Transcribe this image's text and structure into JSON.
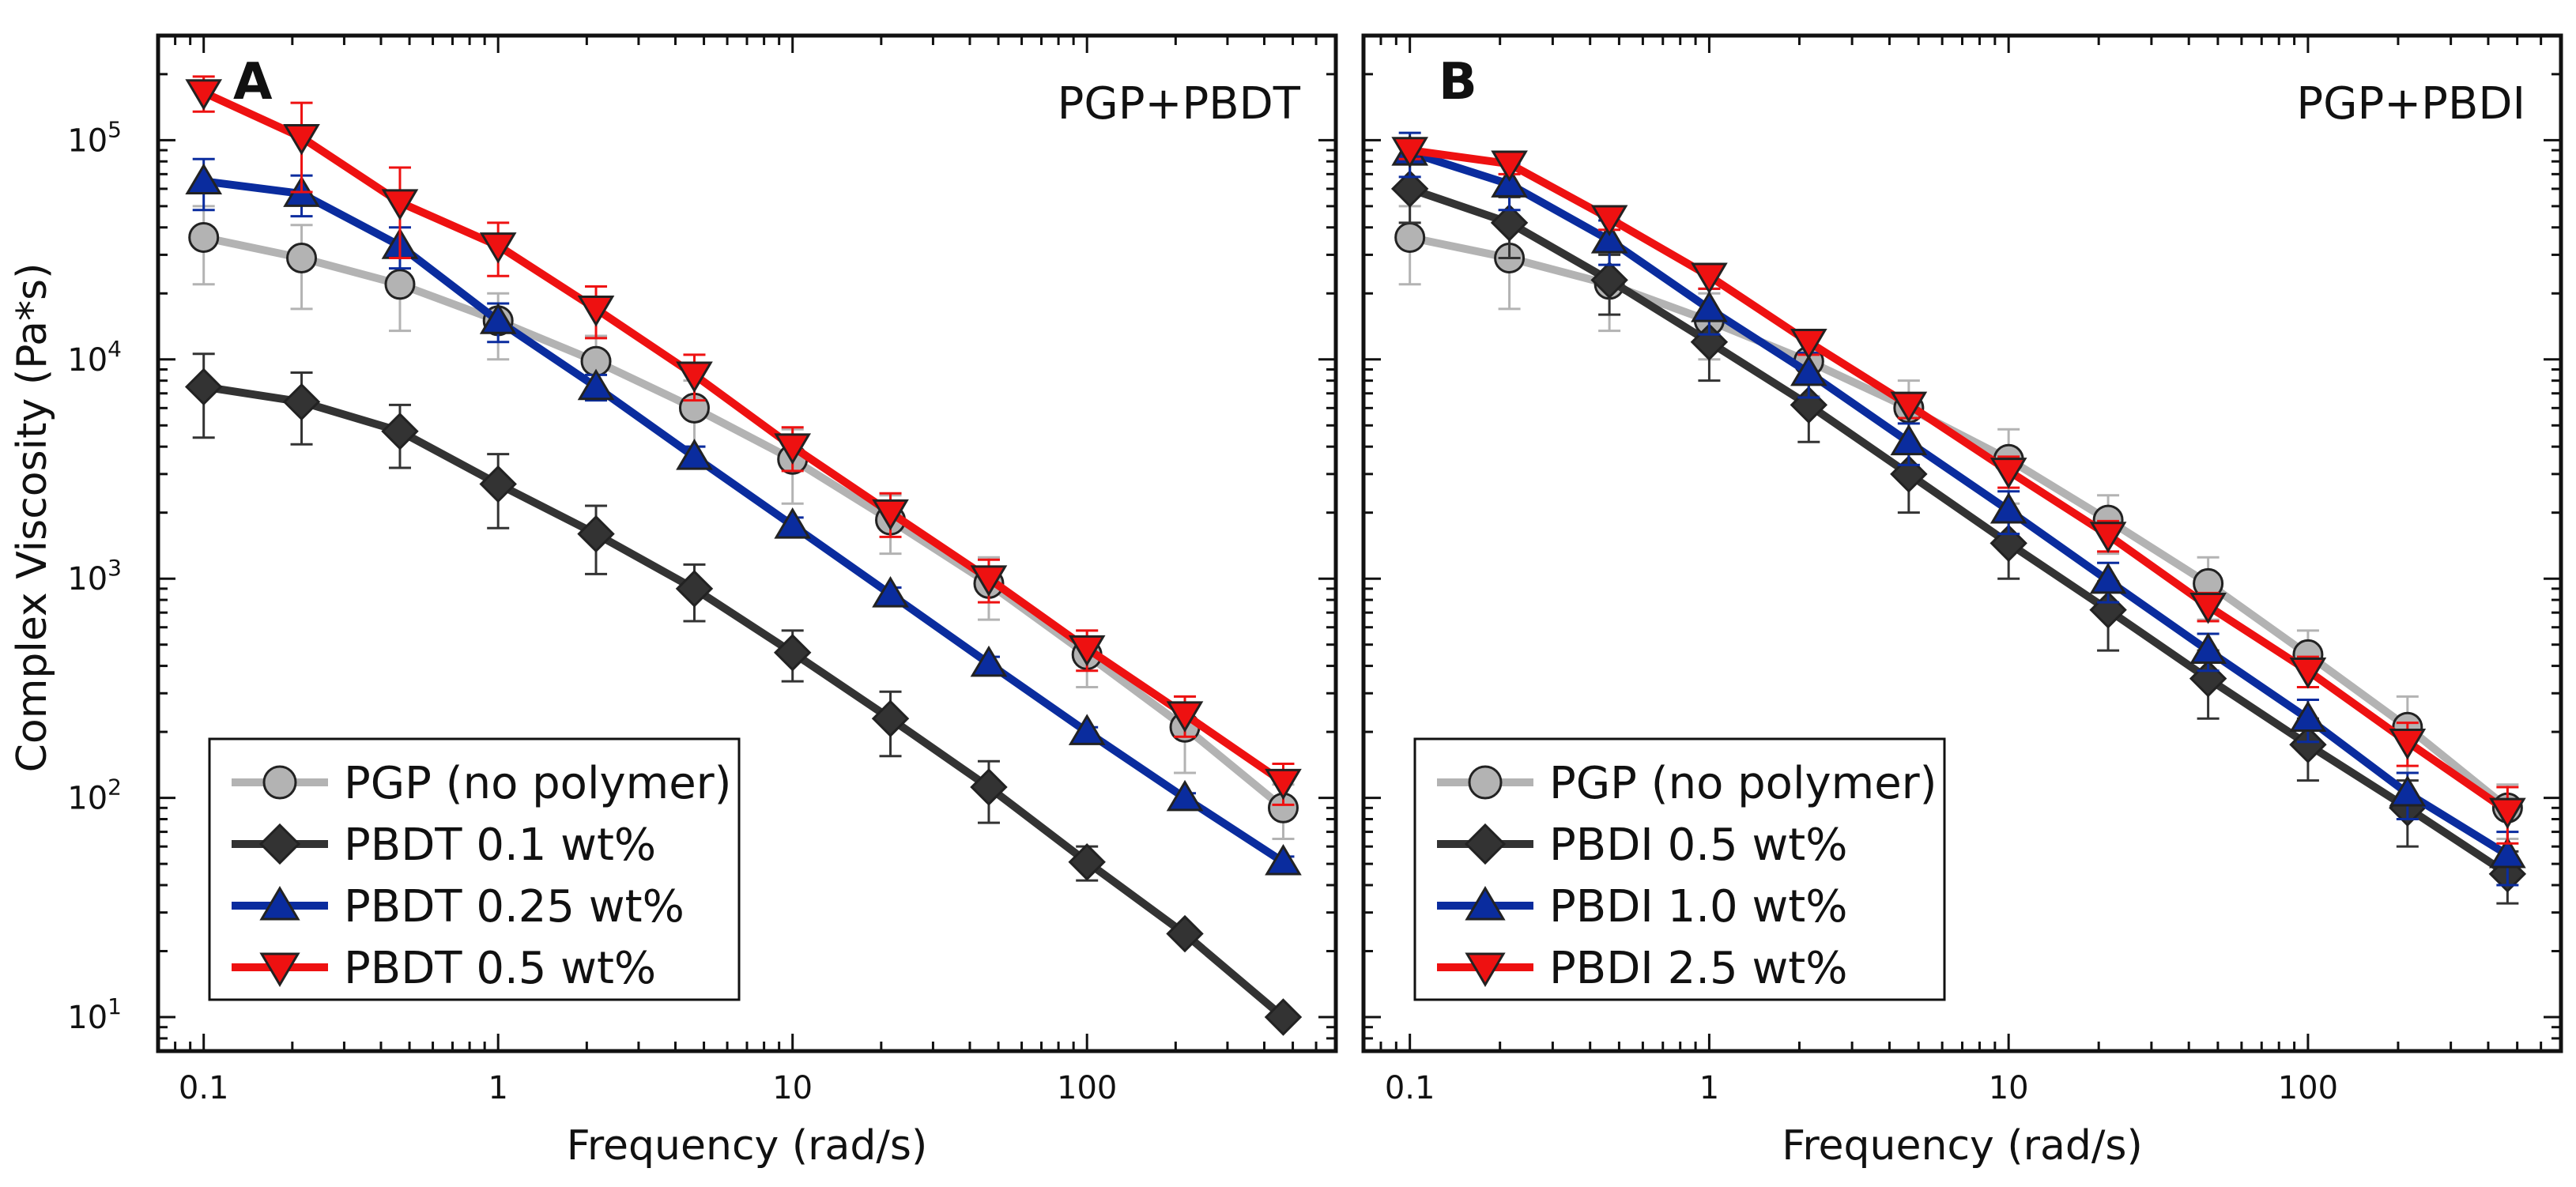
{
  "chart_data": [
    {
      "type": "line",
      "panel_label": "A",
      "title": "PGP+PBDT",
      "xlabel": "Frequency (rad/s)",
      "ylabel": "Complex Viscosity (Pa*s)",
      "xscale": "log",
      "yscale": "log",
      "xlim": [
        0.07,
        700
      ],
      "ylim": [
        7,
        300000
      ],
      "x_ticks": [
        0.1,
        1,
        10,
        100
      ],
      "x_tick_labels": [
        "0.1",
        "1",
        "10",
        "100"
      ],
      "y_ticks": [
        10,
        100,
        1000,
        10000,
        100000
      ],
      "y_tick_labels": [
        "10",
        "10",
        "10",
        "10",
        "10"
      ],
      "y_tick_exponents": [
        "1",
        "2",
        "3",
        "4",
        "5"
      ],
      "legend_position": "bottom-left",
      "x": [
        0.1,
        0.215,
        0.464,
        1.0,
        2.15,
        4.64,
        10.0,
        21.5,
        46.4,
        100,
        215,
        464
      ],
      "series": [
        {
          "name": "PGP (no polymer)",
          "color": "#b3b3b3",
          "marker": "circle",
          "values": [
            36000,
            29000,
            22000,
            15000,
            9800,
            6000,
            3500,
            1850,
            950,
            450,
            210,
            90
          ],
          "errors": [
            14000,
            12000,
            8500,
            5000,
            3000,
            2000,
            1300,
            550,
            300,
            130,
            80,
            25
          ]
        },
        {
          "name": "PBDT 0.1 wt%",
          "color": "#333333",
          "marker": "diamond",
          "values": [
            7500,
            6400,
            4700,
            2700,
            1600,
            900,
            460,
            230,
            112,
            51,
            24,
            10
          ],
          "errors": [
            3100,
            2300,
            1500,
            1000,
            550,
            260,
            120,
            75,
            35,
            9,
            0,
            0
          ]
        },
        {
          "name": "PBDT 0.25 wt%",
          "color": "#0a2c9e",
          "marker": "triangle-up",
          "values": [
            65000,
            57000,
            33000,
            15000,
            7500,
            3600,
            1750,
            850,
            410,
            200,
            100,
            51
          ],
          "errors": [
            17000,
            12000,
            7000,
            3000,
            1000,
            400,
            150,
            60,
            30,
            10,
            5,
            3
          ]
        },
        {
          "name": "PBDT 0.5 wt%",
          "color": "#ee1111",
          "marker": "triangle-down",
          "values": [
            165000,
            103000,
            52000,
            33000,
            17000,
            8500,
            4000,
            2000,
            1000,
            480,
            240,
            118
          ],
          "errors": [
            30000,
            45000,
            23000,
            9000,
            4500,
            2000,
            900,
            450,
            220,
            100,
            50,
            25
          ]
        }
      ]
    },
    {
      "type": "line",
      "panel_label": "B",
      "title": "PGP+PBDI",
      "xlabel": "Frequency (rad/s)",
      "ylabel": "",
      "xscale": "log",
      "yscale": "log",
      "xlim": [
        0.07,
        700
      ],
      "ylim": [
        7,
        300000
      ],
      "x_ticks": [
        0.1,
        1,
        10,
        100
      ],
      "x_tick_labels": [
        "0.1",
        "1",
        "10",
        "100"
      ],
      "legend_position": "bottom-left",
      "x": [
        0.1,
        0.215,
        0.464,
        1.0,
        2.15,
        4.64,
        10.0,
        21.5,
        46.4,
        100,
        215,
        464
      ],
      "series": [
        {
          "name": "PGP (no polymer)",
          "color": "#b3b3b3",
          "marker": "circle",
          "values": [
            36000,
            29000,
            22000,
            15000,
            9800,
            6000,
            3500,
            1850,
            950,
            450,
            210,
            90
          ],
          "errors": [
            14000,
            12000,
            8500,
            5000,
            3000,
            2000,
            1300,
            550,
            300,
            130,
            80,
            25
          ]
        },
        {
          "name": "PBDI 0.5 wt%",
          "color": "#333333",
          "marker": "diamond",
          "values": [
            60000,
            42000,
            23000,
            12000,
            6200,
            3000,
            1450,
            720,
            350,
            175,
            90,
            45
          ],
          "errors": [
            18000,
            13000,
            7000,
            4000,
            2000,
            1000,
            450,
            250,
            120,
            55,
            30,
            12
          ]
        },
        {
          "name": "PBDI 1.0 wt%",
          "color": "#0a2c9e",
          "marker": "triangle-up",
          "values": [
            88000,
            63000,
            35000,
            17000,
            8700,
            4200,
            2050,
            980,
            470,
            230,
            105,
            55
          ],
          "errors": [
            20000,
            15000,
            8000,
            4000,
            2000,
            900,
            450,
            200,
            90,
            50,
            25,
            15
          ]
        },
        {
          "name": "PBDI 2.5 wt%",
          "color": "#ee1111",
          "marker": "triangle-down",
          "values": [
            90000,
            78000,
            44000,
            24000,
            12000,
            6200,
            3100,
            1580,
            750,
            380,
            180,
            87
          ],
          "errors": [
            8000,
            8000,
            5000,
            3000,
            1500,
            800,
            500,
            250,
            110,
            60,
            40,
            25
          ]
        }
      ]
    }
  ]
}
